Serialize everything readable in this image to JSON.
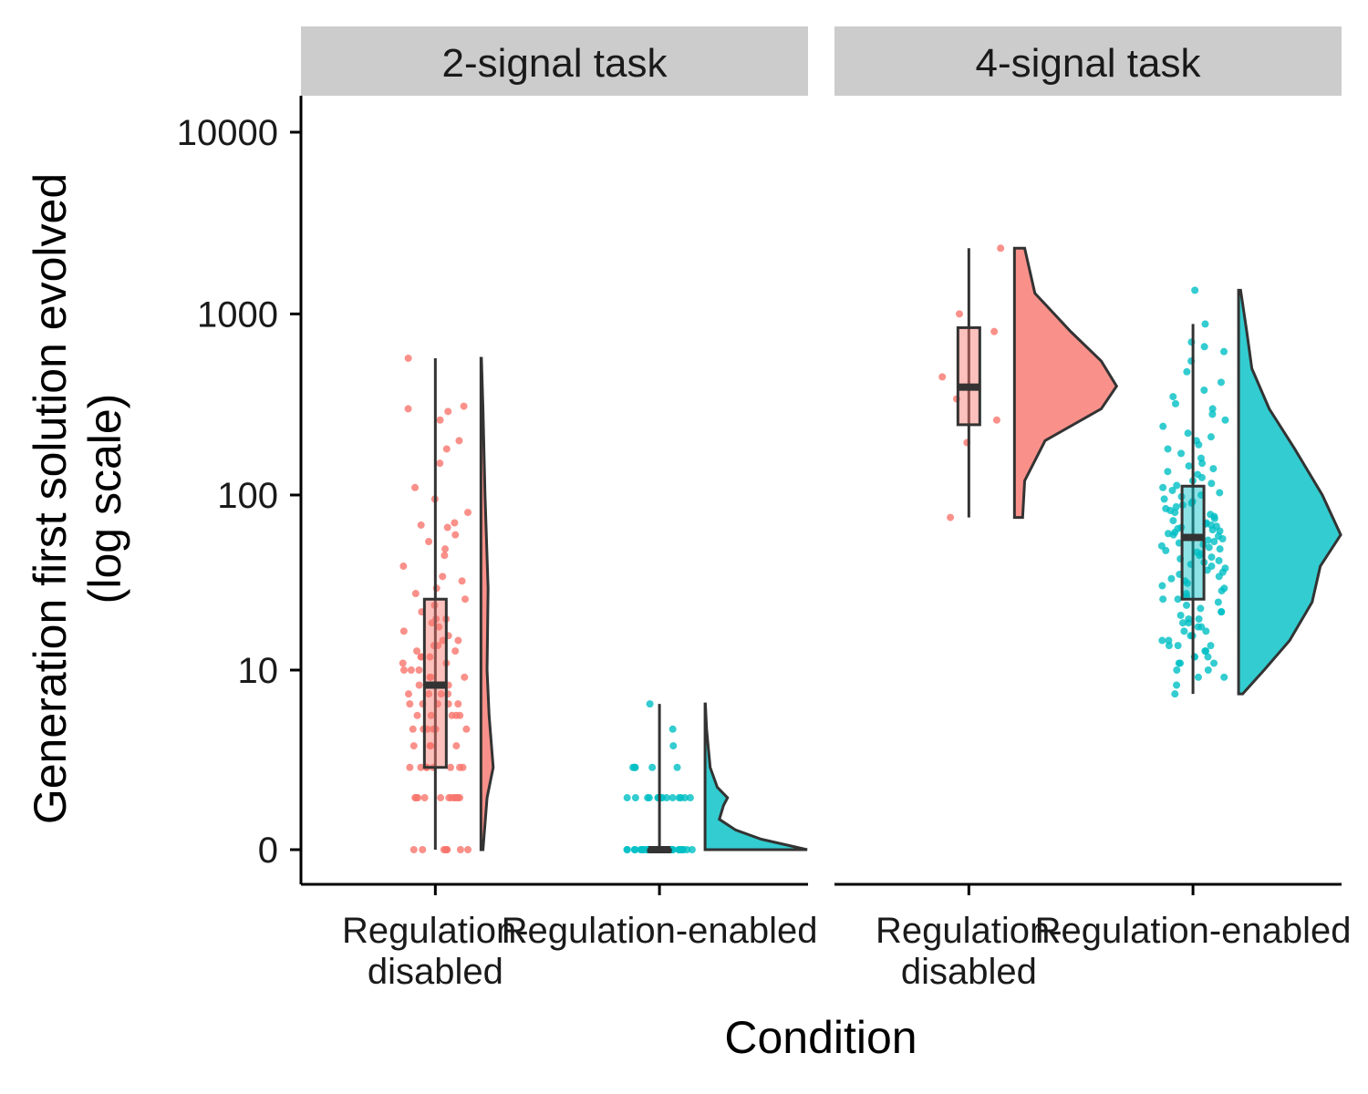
{
  "chart_data": {
    "type": "raincloud",
    "xlabel": "Condition",
    "ylabel_lines": [
      "Generation first solution evolved",
      "(log scale)"
    ],
    "y_scale": "log1p",
    "y_ticks": [
      0,
      10,
      100,
      1000,
      10000
    ],
    "y_tick_labels": [
      "0",
      "10",
      "100",
      "1000",
      "10000"
    ],
    "ylim": [
      0,
      15000
    ],
    "x_tick_labels": [
      [
        "Regulation-",
        "disabled"
      ],
      [
        "Regulation-enabled"
      ]
    ],
    "colors": {
      "Regulation-disabled": "#F8766D",
      "Regulation-enabled": "#00BFC4"
    },
    "facets": [
      {
        "title": "2-signal task",
        "groups": [
          {
            "condition": "Regulation-disabled",
            "box": {
              "min": 0,
              "q1": 2,
              "median": 8,
              "q3": 26,
              "max": 570
            },
            "violin_range": [
              0,
              570
            ],
            "violin_shape": [
              [
                0,
                0.02
              ],
              [
                1,
                0.06
              ],
              [
                2,
                0.12
              ],
              [
                5,
                0.08
              ],
              [
                10,
                0.06
              ],
              [
                30,
                0.07
              ],
              [
                100,
                0.04
              ],
              [
                300,
                0.02
              ],
              [
                570,
                0.005
              ]
            ],
            "points": [
              0,
              0,
              0,
              0,
              0,
              0,
              0,
              0,
              1,
              1,
              1,
              1,
              1,
              1,
              1,
              1,
              1,
              1,
              1,
              1,
              2,
              2,
              2,
              2,
              2,
              2,
              2,
              2,
              3,
              3,
              3,
              3,
              4,
              4,
              4,
              4,
              4,
              4,
              5,
              5,
              5,
              5,
              5,
              6,
              6,
              6,
              6,
              6,
              7,
              7,
              7,
              7,
              8,
              8,
              8,
              8,
              9,
              9,
              9,
              10,
              10,
              10,
              11,
              11,
              12,
              12,
              12,
              13,
              13,
              14,
              14,
              15,
              15,
              16,
              17,
              18,
              19,
              20,
              20,
              22,
              24,
              26,
              28,
              30,
              33,
              35,
              40,
              46,
              50,
              55,
              60,
              66,
              68,
              70,
              80,
              95,
              110,
              150,
              180,
              200,
              260,
              290,
              300,
              310,
              570
            ]
          },
          {
            "condition": "Regulation-enabled",
            "box": {
              "min": 0,
              "q1": 0,
              "median": 0,
              "q3": 0,
              "max": 6
            },
            "violin_range": [
              0,
              6
            ],
            "violin_shape": [
              [
                0,
                1.0
              ],
              [
                0.15,
                0.55
              ],
              [
                0.3,
                0.3
              ],
              [
                0.5,
                0.14
              ],
              [
                0.8,
                0.18
              ],
              [
                1,
                0.22
              ],
              [
                1.3,
                0.12
              ],
              [
                2,
                0.05
              ],
              [
                3,
                0.03
              ],
              [
                4,
                0.015
              ],
              [
                6,
                0.003
              ]
            ],
            "points": [
              0,
              0,
              0,
              0,
              0,
              0,
              0,
              0,
              0,
              0,
              0,
              0,
              0,
              0,
              0,
              0,
              0,
              0,
              0,
              0,
              0,
              0,
              0,
              0,
              0,
              0,
              0,
              0,
              0,
              0,
              0,
              0,
              0,
              0,
              0,
              0,
              0,
              0,
              0,
              0,
              1,
              1,
              1,
              1,
              1,
              1,
              1,
              1,
              1,
              1,
              1,
              1,
              1,
              1,
              2,
              2,
              2,
              2,
              2,
              2,
              3,
              4,
              6
            ]
          }
        ]
      },
      {
        "title": "4-signal task",
        "groups": [
          {
            "condition": "Regulation-disabled",
            "box": {
              "min": 75,
              "q1": 245,
              "median": 395,
              "q3": 840,
              "max": 2300
            },
            "violin_range": [
              75,
              2300
            ],
            "violin_shape": [
              [
                75,
                0.08
              ],
              [
                120,
                0.1
              ],
              [
                200,
                0.3
              ],
              [
                300,
                0.85
              ],
              [
                400,
                1.0
              ],
              [
                550,
                0.85
              ],
              [
                800,
                0.55
              ],
              [
                1300,
                0.2
              ],
              [
                2300,
                0.1
              ]
            ],
            "points": [
              75,
              195,
              260,
              340,
              450,
              800,
              1000,
              2300
            ]
          },
          {
            "condition": "Regulation-enabled",
            "box": {
              "min": 7,
              "q1": 26,
              "median": 58,
              "q3": 112,
              "max": 880
            },
            "violin_range": [
              7,
              1350
            ],
            "violin_shape": [
              [
                7,
                0.04
              ],
              [
                10,
                0.25
              ],
              [
                15,
                0.5
              ],
              [
                25,
                0.72
              ],
              [
                40,
                0.8
              ],
              [
                60,
                1.0
              ],
              [
                100,
                0.82
              ],
              [
                180,
                0.55
              ],
              [
                300,
                0.3
              ],
              [
                500,
                0.13
              ],
              [
                800,
                0.08
              ],
              [
                1350,
                0.02
              ]
            ],
            "points": [
              7,
              8,
              9,
              9,
              10,
              10,
              11,
              11,
              11,
              12,
              12,
              12,
              13,
              13,
              14,
              14,
              14,
              15,
              15,
              16,
              16,
              17,
              17,
              18,
              18,
              19,
              19,
              20,
              20,
              21,
              22,
              22,
              23,
              24,
              25,
              26,
              26,
              27,
              28,
              29,
              30,
              31,
              32,
              33,
              34,
              35,
              36,
              37,
              38,
              39,
              40,
              41,
              42,
              43,
              44,
              45,
              46,
              47,
              48,
              49,
              50,
              51,
              52,
              53,
              54,
              55,
              56,
              57,
              58,
              59,
              60,
              61,
              62,
              63,
              64,
              65,
              66,
              67,
              68,
              69,
              70,
              72,
              74,
              76,
              78,
              80,
              82,
              84,
              86,
              88,
              90,
              92,
              95,
              98,
              100,
              103,
              106,
              110,
              113,
              116,
              120,
              125,
              130,
              135,
              140,
              145,
              150,
              160,
              170,
              180,
              190,
              200,
              210,
              220,
              240,
              260,
              280,
              300,
              320,
              350,
              380,
              420,
              480,
              550,
              620,
              660,
              700,
              880,
              1350
            ]
          }
        ]
      }
    ]
  }
}
